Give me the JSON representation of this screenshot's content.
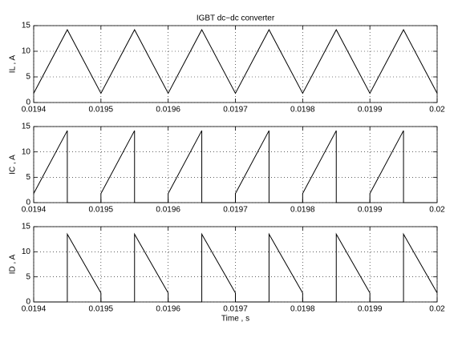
{
  "chart_data": [
    {
      "type": "line",
      "title": "IGBT dc−dc converter",
      "ylabel": "IL , A",
      "x": [
        0.0194,
        0.01945,
        0.0195,
        0.01955,
        0.0196,
        0.01965,
        0.0197,
        0.01975,
        0.0198,
        0.01985,
        0.0199,
        0.01995,
        0.02
      ],
      "values": [
        1.8,
        14.2,
        1.8,
        14.2,
        1.8,
        14.2,
        1.8,
        14.2,
        1.8,
        14.2,
        1.8,
        14.2,
        1.8
      ],
      "color": "#000000",
      "xlim": [
        0.0194,
        0.02
      ],
      "ylim": [
        0,
        15
      ],
      "xticks": [
        0.0194,
        0.0195,
        0.0196,
        0.0197,
        0.0198,
        0.0199,
        0.02
      ],
      "yticks": [
        0,
        5,
        10,
        15
      ],
      "grid": true
    },
    {
      "type": "line",
      "ylabel": "IC , A",
      "x": [
        0.0194,
        0.01945,
        0.01945,
        0.0195,
        0.0195,
        0.01955,
        0.01955,
        0.0196,
        0.0196,
        0.01965,
        0.01965,
        0.0197,
        0.0197,
        0.01975,
        0.01975,
        0.0198,
        0.0198,
        0.01985,
        0.01985,
        0.0199,
        0.0199,
        0.01995,
        0.01995,
        0.02
      ],
      "values": [
        1.8,
        14.2,
        0,
        0,
        1.8,
        14.2,
        0,
        0,
        1.8,
        14.2,
        0,
        0,
        1.8,
        14.2,
        0,
        0,
        1.8,
        14.2,
        0,
        0,
        1.8,
        14.2,
        0,
        0
      ],
      "color": "#000000",
      "xlim": [
        0.0194,
        0.02
      ],
      "ylim": [
        0,
        15
      ],
      "xticks": [
        0.0194,
        0.0195,
        0.0196,
        0.0197,
        0.0198,
        0.0199,
        0.02
      ],
      "yticks": [
        0,
        5,
        10,
        15
      ],
      "grid": true
    },
    {
      "type": "line",
      "ylabel": "ID , A",
      "xlabel": "Time , s",
      "x": [
        0.0194,
        0.01945,
        0.01945,
        0.0195,
        0.0195,
        0.01955,
        0.01955,
        0.0196,
        0.0196,
        0.01965,
        0.01965,
        0.0197,
        0.0197,
        0.01975,
        0.01975,
        0.0198,
        0.0198,
        0.01985,
        0.01985,
        0.0199,
        0.0199,
        0.01995,
        0.01995,
        0.02
      ],
      "values": [
        0,
        0,
        13.5,
        1.8,
        0,
        0,
        13.5,
        1.8,
        0,
        0,
        13.5,
        1.8,
        0,
        0,
        13.5,
        1.8,
        0,
        0,
        13.5,
        1.8,
        0,
        0,
        13.5,
        1.8
      ],
      "color": "#000000",
      "xlim": [
        0.0194,
        0.02
      ],
      "ylim": [
        0,
        15
      ],
      "xticks": [
        0.0194,
        0.0195,
        0.0196,
        0.0197,
        0.0198,
        0.0199,
        0.02
      ],
      "yticks": [
        0,
        5,
        10,
        15
      ],
      "grid": true
    }
  ]
}
